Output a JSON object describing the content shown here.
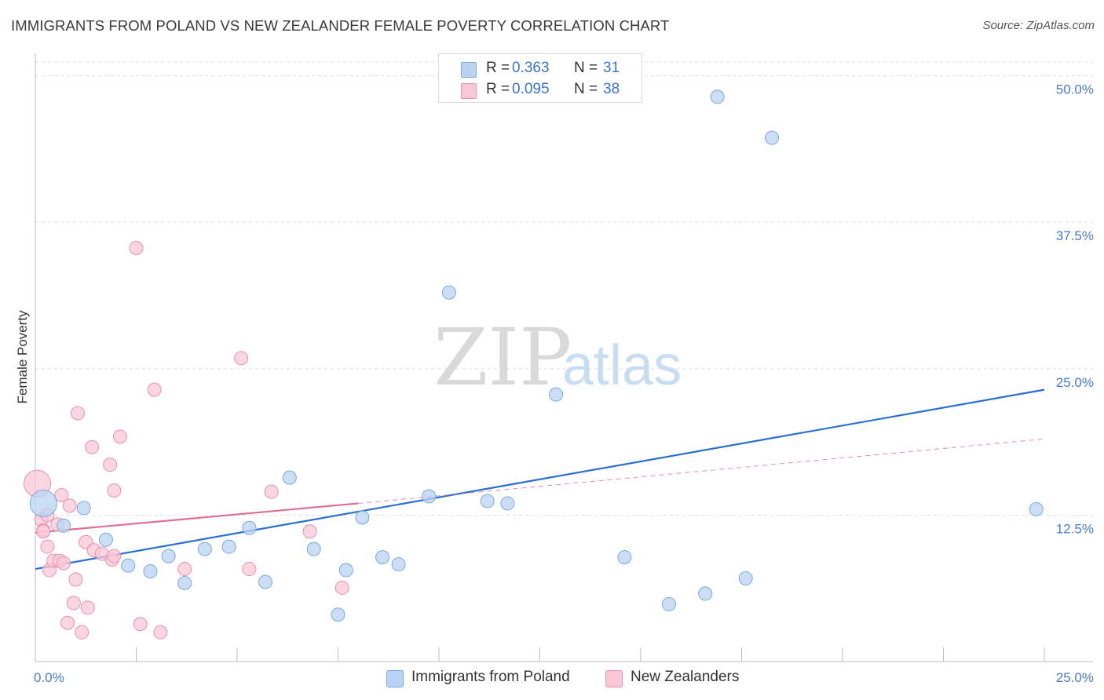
{
  "title": "IMMIGRANTS FROM POLAND VS NEW ZEALANDER FEMALE POVERTY CORRELATION CHART",
  "source": "Source: ZipAtlas.com",
  "watermark": {
    "zip": "ZIP",
    "atlas": "atlas"
  },
  "colors": {
    "blue_fill": "#b9d3f3",
    "blue_stroke": "#7aa8e0",
    "blue_line": "#2a6fd0",
    "pink_fill": "#f9c7d6",
    "pink_stroke": "#e891ad",
    "pink_line": "#e06c98",
    "grid": "#dcdcdc",
    "tick_text": "#4a7cc9"
  },
  "legend": {
    "rows": [
      {
        "r_label": "R =",
        "r_value": "0.363",
        "n_label": "N =",
        "n_value": "31"
      },
      {
        "r_label": "R =",
        "r_value": "0.095",
        "n_label": "N =",
        "n_value": "38"
      }
    ]
  },
  "bottom_legend": [
    "Immigrants from Poland",
    "New Zealanders"
  ],
  "chart_data": {
    "type": "scatter",
    "title": "IMMIGRANTS FROM POLAND VS NEW ZEALANDER FEMALE POVERTY CORRELATION CHART",
    "xlabel": "",
    "ylabel": "Female Poverty",
    "xlim": [
      0,
      25
    ],
    "ylim": [
      0,
      50
    ],
    "x_tick_labels": [
      "0.0%",
      "25.0%"
    ],
    "y_tick_labels": [
      "12.5%",
      "25.0%",
      "37.5%",
      "50.0%"
    ],
    "y_ticks": [
      12.5,
      25.0,
      37.5,
      50.0
    ],
    "grid": true,
    "legend_position": "top-center",
    "series": [
      {
        "name": "Immigrants from Poland",
        "color": "#b9d3f3",
        "r": 0.363,
        "n": 31,
        "points": [
          [
            0.2,
            13.5,
            "large"
          ],
          [
            0.7,
            11.6
          ],
          [
            1.2,
            13.1
          ],
          [
            1.75,
            10.4
          ],
          [
            2.3,
            8.2
          ],
          [
            2.85,
            7.7
          ],
          [
            3.3,
            9.0
          ],
          [
            3.7,
            6.7
          ],
          [
            4.2,
            9.6
          ],
          [
            4.8,
            9.8
          ],
          [
            5.3,
            11.4
          ],
          [
            5.7,
            6.8
          ],
          [
            6.3,
            15.7
          ],
          [
            6.9,
            9.6
          ],
          [
            7.5,
            4.0
          ],
          [
            7.7,
            7.8
          ],
          [
            8.1,
            12.3
          ],
          [
            8.6,
            8.9
          ],
          [
            9.0,
            8.3
          ],
          [
            9.75,
            14.1
          ],
          [
            10.25,
            31.5
          ],
          [
            11.2,
            13.7
          ],
          [
            11.7,
            13.5
          ],
          [
            12.9,
            22.8
          ],
          [
            14.6,
            8.9
          ],
          [
            15.7,
            4.9
          ],
          [
            16.6,
            5.8
          ],
          [
            16.9,
            48.2
          ],
          [
            17.6,
            7.1
          ],
          [
            18.25,
            44.7
          ],
          [
            24.8,
            13.0
          ]
        ],
        "trend": {
          "x": [
            0,
            25
          ],
          "y": [
            7.9,
            23.2
          ],
          "style": "solid"
        }
      },
      {
        "name": "New Zealanders",
        "color": "#f9c7d6",
        "r": 0.095,
        "n": 38,
        "points": [
          [
            0.05,
            15.2,
            "large"
          ],
          [
            0.15,
            12.1
          ],
          [
            0.2,
            11.2
          ],
          [
            0.3,
            12.5
          ],
          [
            0.3,
            9.8
          ],
          [
            0.35,
            7.8
          ],
          [
            0.45,
            8.6
          ],
          [
            0.55,
            11.7
          ],
          [
            0.6,
            8.6
          ],
          [
            0.65,
            14.2
          ],
          [
            0.7,
            8.4
          ],
          [
            0.8,
            3.3
          ],
          [
            0.85,
            13.3
          ],
          [
            0.95,
            5.0
          ],
          [
            1.0,
            7.0
          ],
          [
            1.05,
            21.2
          ],
          [
            1.15,
            2.5
          ],
          [
            1.25,
            10.2
          ],
          [
            1.3,
            4.6
          ],
          [
            1.4,
            18.3
          ],
          [
            1.45,
            9.5
          ],
          [
            1.65,
            9.2
          ],
          [
            1.85,
            16.8
          ],
          [
            1.9,
            8.7
          ],
          [
            1.95,
            9.0
          ],
          [
            1.95,
            14.6
          ],
          [
            2.1,
            19.2
          ],
          [
            2.5,
            35.3
          ],
          [
            2.6,
            3.2
          ],
          [
            2.95,
            23.2
          ],
          [
            3.1,
            2.5
          ],
          [
            3.7,
            7.9
          ],
          [
            5.1,
            25.9
          ],
          [
            5.3,
            7.9
          ],
          [
            5.85,
            14.5
          ],
          [
            6.8,
            11.1
          ],
          [
            7.6,
            6.3
          ],
          [
            0.2,
            11.1
          ]
        ],
        "trend": {
          "x": [
            0,
            8
          ],
          "y": [
            11.0,
            13.5
          ],
          "style": "solid",
          "extended": {
            "x": [
              8,
              25
            ],
            "y": [
              13.5,
              19.0
            ],
            "style": "dashed"
          }
        }
      }
    ]
  }
}
